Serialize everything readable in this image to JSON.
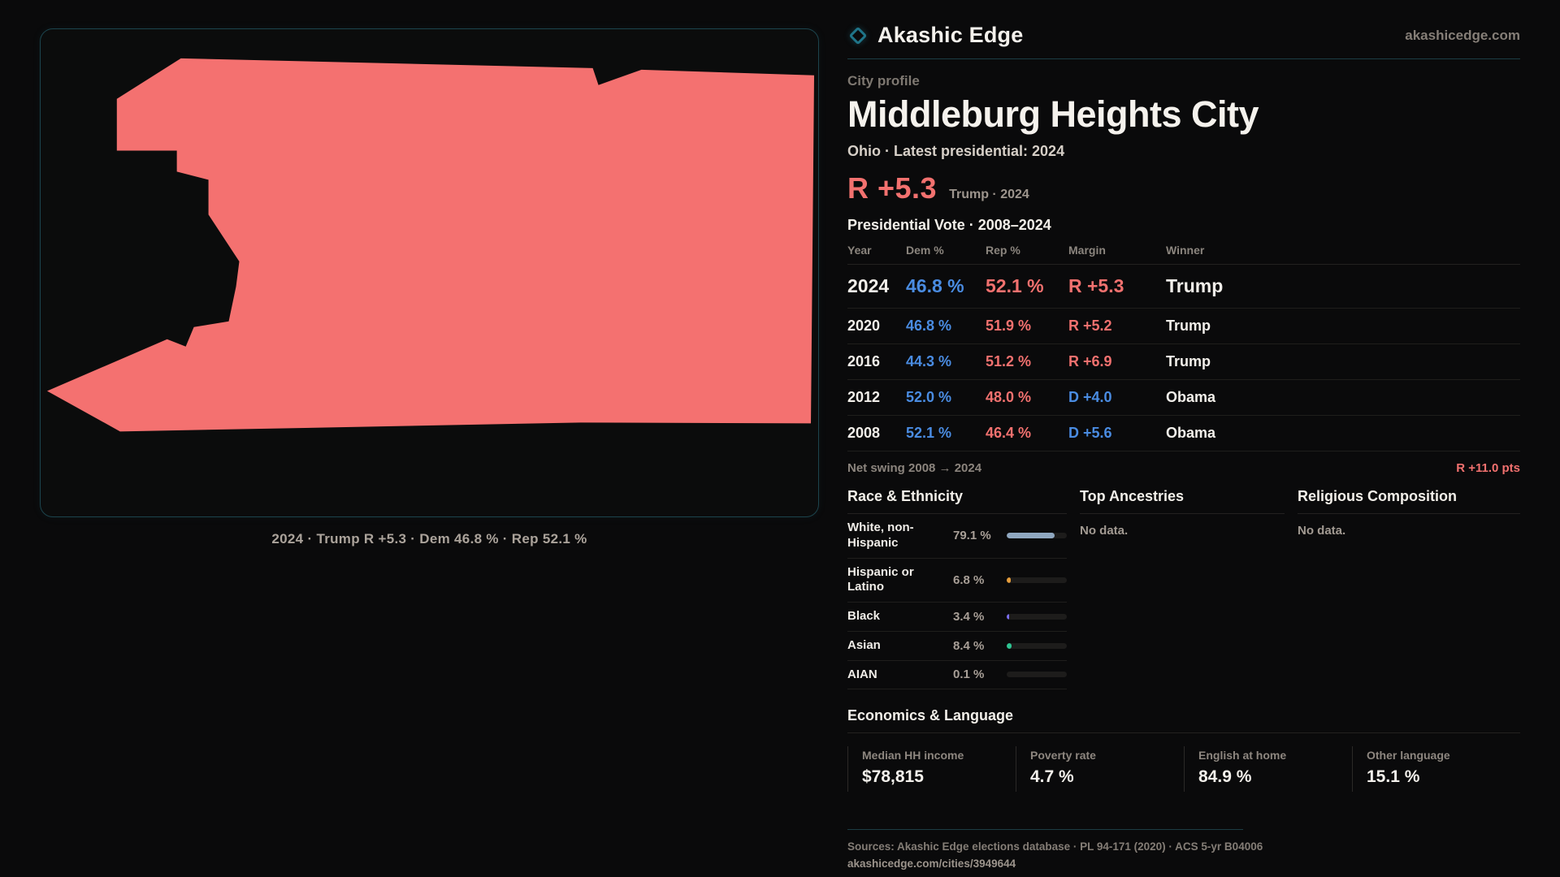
{
  "brand": {
    "name": "Akashic Edge",
    "site": "akashicedge.com"
  },
  "map": {
    "fill": "#f47170",
    "caption": "2024 · Trump R +5.3 · Dem 46.8 % · Rep 52.1 %"
  },
  "profile": {
    "kicker": "City profile",
    "title": "Middleburg Heights City",
    "subtitle": "Ohio · Latest presidential: 2024",
    "headline_margin": "R +5.3",
    "headline_note": "Trump · 2024"
  },
  "vote_table": {
    "heading": "Presidential Vote · 2008–2024",
    "columns": {
      "year": "Year",
      "dem": "Dem %",
      "rep": "Rep %",
      "margin": "Margin",
      "winner": "Winner"
    },
    "rows": [
      {
        "year": "2024",
        "dem": "46.8 %",
        "rep": "52.1 %",
        "margin": "R +5.3",
        "margin_party": "R",
        "winner": "Trump"
      },
      {
        "year": "2020",
        "dem": "46.8 %",
        "rep": "51.9 %",
        "margin": "R +5.2",
        "margin_party": "R",
        "winner": "Trump"
      },
      {
        "year": "2016",
        "dem": "44.3 %",
        "rep": "51.2 %",
        "margin": "R +6.9",
        "margin_party": "R",
        "winner": "Trump"
      },
      {
        "year": "2012",
        "dem": "52.0 %",
        "rep": "48.0 %",
        "margin": "D +4.0",
        "margin_party": "D",
        "winner": "Obama"
      },
      {
        "year": "2008",
        "dem": "52.1 %",
        "rep": "46.4 %",
        "margin": "D +5.6",
        "margin_party": "D",
        "winner": "Obama"
      }
    ],
    "net_swing_label": "Net swing 2008 → 2024",
    "net_swing_value": "R +11.0 pts"
  },
  "race": {
    "heading": "Race & Ethnicity",
    "rows": [
      {
        "label": "White, non-Hispanic",
        "value": "79.1 %",
        "pct": 79.1,
        "color": "#8fa7c0"
      },
      {
        "label": "Hispanic or Latino",
        "value": "6.8 %",
        "pct": 6.8,
        "color": "#e59d3c"
      },
      {
        "label": "Black",
        "value": "3.4 %",
        "pct": 3.4,
        "color": "#7b6df0"
      },
      {
        "label": "Asian",
        "value": "8.4 %",
        "pct": 8.4,
        "color": "#2ec492"
      },
      {
        "label": "AIAN",
        "value": "0.1 %",
        "pct": 0.1,
        "color": "#8fa7c0"
      }
    ]
  },
  "ancestries": {
    "heading": "Top Ancestries",
    "empty": "No data."
  },
  "religion": {
    "heading": "Religious Composition",
    "empty": "No data."
  },
  "economics": {
    "heading": "Economics & Language",
    "stats": [
      {
        "label": "Median HH income",
        "value": "$78,815"
      },
      {
        "label": "Poverty rate",
        "value": "4.7 %"
      },
      {
        "label": "English at home",
        "value": "84.9 %"
      },
      {
        "label": "Other language",
        "value": "15.1 %"
      }
    ]
  },
  "footer": {
    "sources": "Sources: Akashic Edge elections database · PL 94-171 (2020) · ACS 5-yr B04006",
    "permalink": "akashicedge.com/cities/3949644"
  }
}
